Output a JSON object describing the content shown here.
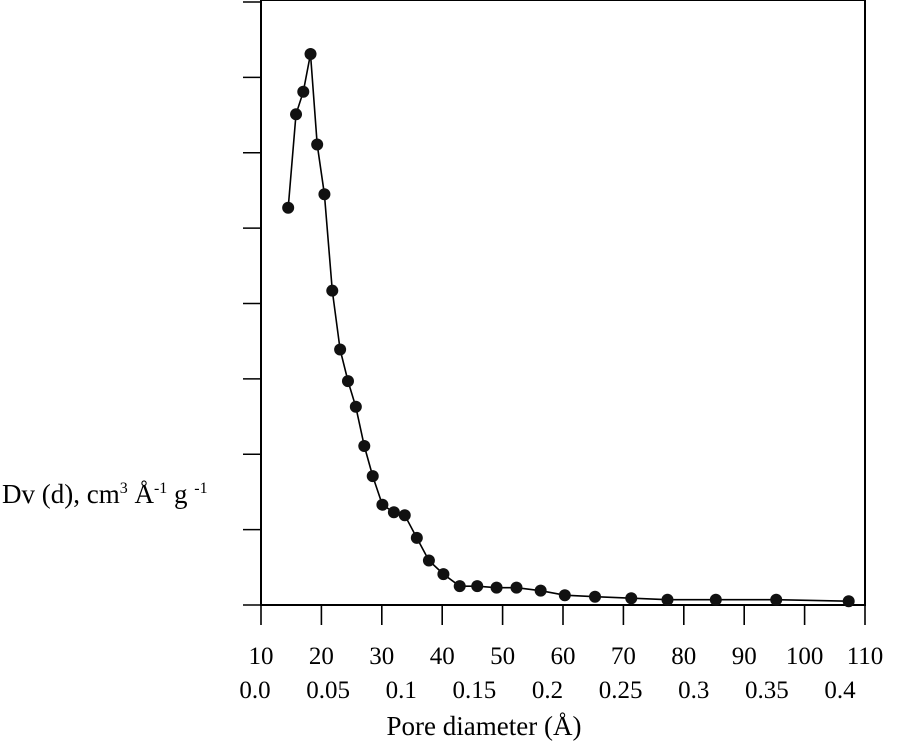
{
  "chart_data": {
    "type": "line",
    "markers": "filled-circle",
    "color": "#111111",
    "xlabel": "Pore diameter (Å)",
    "ylabel": {
      "prefix": "Dv (d), cm",
      "sup1": "3",
      "mid": " Å",
      "sup2": "-1",
      "mid2": " g ",
      "sup3": "-1"
    },
    "xlim": [
      10,
      110
    ],
    "x_ticks": [
      "10",
      "20",
      "30",
      "40",
      "50",
      "60",
      "70",
      "80",
      "90",
      "100",
      "110"
    ],
    "y_tick_labels": [
      "0.0",
      "0.05",
      "0.1",
      "0.15",
      "0.2",
      "0.25",
      "0.3",
      "0.35",
      "0.4"
    ],
    "ylim": [
      0,
      0.4
    ],
    "y_ticks": [
      0,
      0.05,
      0.1,
      0.15,
      0.2,
      0.25,
      0.3,
      0.35,
      0.4
    ],
    "grid": false,
    "series": [
      {
        "x": [
          14.5,
          15.8,
          17.0,
          18.2,
          19.3,
          20.5,
          21.8,
          23.1,
          24.4,
          25.7,
          27.1,
          28.5,
          30.1,
          32.0,
          33.8,
          35.8,
          37.8,
          40.2,
          42.9,
          45.8,
          49.0,
          52.3,
          56.3,
          60.3,
          65.3,
          71.3,
          77.3,
          85.3,
          95.3,
          107.3
        ],
        "y": [
          0.2635,
          0.3255,
          0.3405,
          0.3655,
          0.3055,
          0.2725,
          0.2085,
          0.1695,
          0.1485,
          0.1315,
          0.1055,
          0.0855,
          0.0665,
          0.0615,
          0.0595,
          0.0445,
          0.0295,
          0.0205,
          0.0125,
          0.0125,
          0.0115,
          0.0115,
          0.0095,
          0.0065,
          0.0055,
          0.0045,
          0.0035,
          0.0035,
          0.0035,
          0.0025
        ]
      }
    ]
  }
}
